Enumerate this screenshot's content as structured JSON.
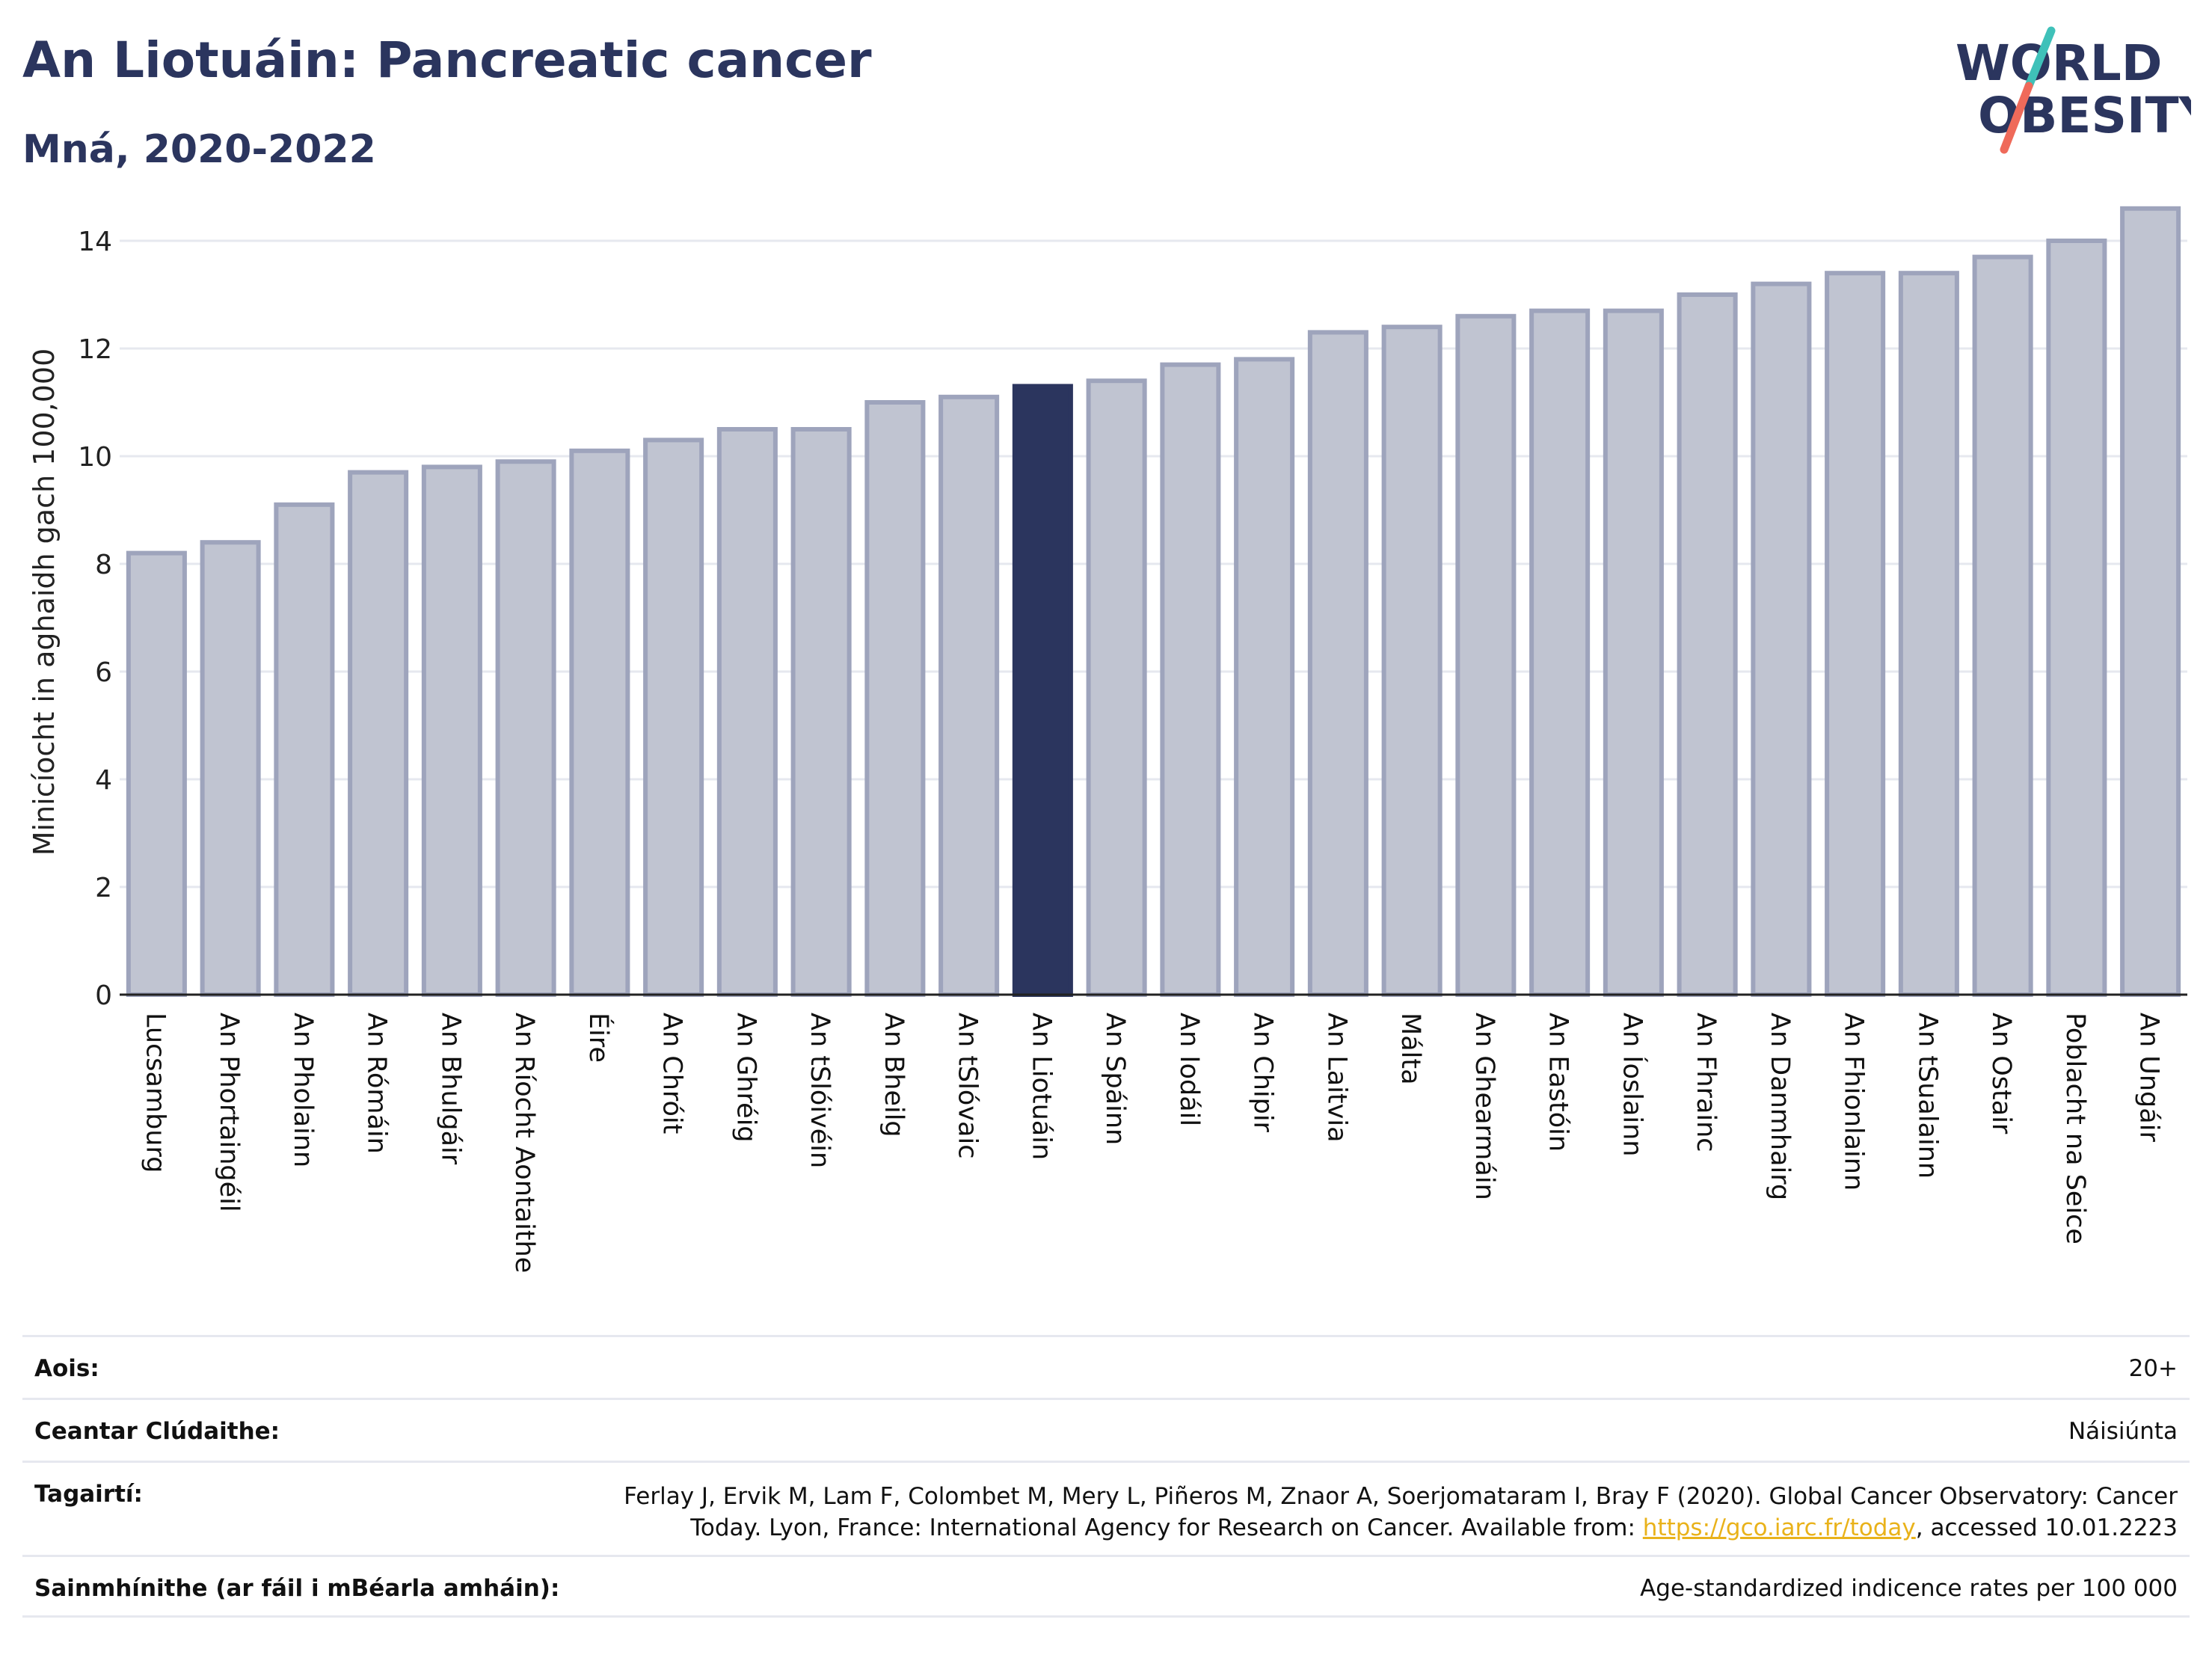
{
  "header": {
    "title": "An Liotuáin: Pancreatic cancer",
    "subtitle": "Mná, 2020-2022"
  },
  "logo": {
    "line1": "WORLD",
    "line2": "OBESITY",
    "icon": "world-obesity-logo"
  },
  "colors": {
    "highlight": "#2b355e",
    "bar": "#c0c4d1",
    "bar_edge": "#9ea4bc",
    "text": "#2b355e",
    "link": "#e9b21a"
  },
  "chart_data": {
    "type": "bar",
    "ylabel": "Minicíocht in aghaidh gach 100,000",
    "ylim": [
      0,
      15
    ],
    "yticks": [
      0,
      2,
      4,
      6,
      8,
      10,
      12,
      14
    ],
    "grid": true,
    "highlight": "An Liotuáin",
    "categories": [
      "Lucsamburg",
      "An Phortaingéil",
      "An Pholainn",
      "An Rómáin",
      "An Bhulgáir",
      "An Ríocht Aontaithe",
      "Éire",
      "An Chróit",
      "An Ghréig",
      "An tSlóivéin",
      "An Bheilg",
      "An tSlóvaic",
      "An Liotuáin",
      "An Spáinn",
      "An Iodáil",
      "An Chipir",
      "An Laitvia",
      "Málta",
      "An Ghearmáin",
      "An Eastóin",
      "An Íoslainn",
      "An Fhrainc",
      "An Danmhairg",
      "An Fhionlainn",
      "An tSualainn",
      "An Ostair",
      "Poblacht na Seice",
      "An Ungáir"
    ],
    "values": [
      8.2,
      8.4,
      9.1,
      9.7,
      9.8,
      9.9,
      10.1,
      10.3,
      10.5,
      10.5,
      11.0,
      11.1,
      11.3,
      11.4,
      11.7,
      11.8,
      12.3,
      12.4,
      12.6,
      12.7,
      12.7,
      13.0,
      13.2,
      13.4,
      13.4,
      13.7,
      14.0,
      14.6
    ]
  },
  "meta": {
    "age_label": "Aois:",
    "age_value": "20+",
    "area_label": "Ceantar Clúdaithe:",
    "area_value": "Náisiúnta",
    "ref_label": "Tagairtí:",
    "ref_line1": "Ferlay J, Ervik M, Lam F, Colombet M, Mery L, Piñeros M, Znaor A, Soerjomataram I, Bray F (2020). Global Cancer Observatory: Cancer",
    "ref_line2_pre": "Today. Lyon, France: International Agency for Research on Cancer. Available from: ",
    "ref_link": "https://gco.iarc.fr/today",
    "ref_line2_post": ", accessed 10.01.2223",
    "def_label": "Sainmhínithe (ar fáil i mBéarla amháin):",
    "def_value": "Age-standardized indicence rates per 100 000"
  }
}
